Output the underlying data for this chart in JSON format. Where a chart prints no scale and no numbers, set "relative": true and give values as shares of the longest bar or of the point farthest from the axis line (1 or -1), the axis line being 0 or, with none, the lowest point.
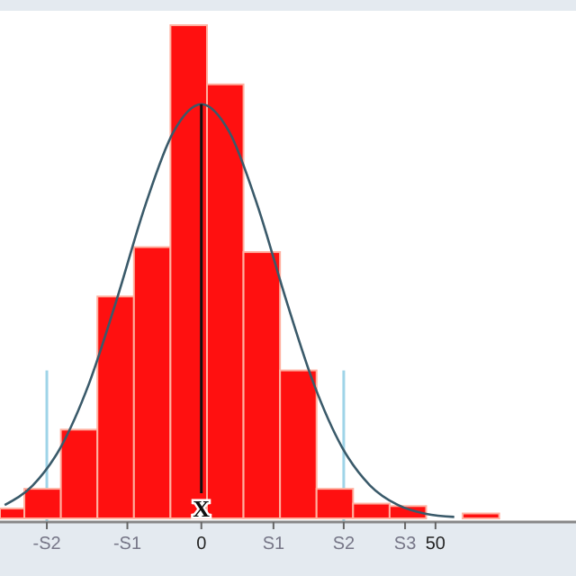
{
  "chart_data": {
    "type": "histogram",
    "relative": true,
    "xlim": [
      -43,
      80
    ],
    "xticks": [
      {
        "value": -33,
        "label": "-S2"
      },
      {
        "value": -15.8,
        "label": "-S1"
      },
      0,
      {
        "value": 15.4,
        "label": "S1"
      },
      {
        "value": 30.4,
        "label": "S2"
      },
      {
        "value": 43.5,
        "label": "S3"
      },
      50
    ],
    "series": [
      {
        "color": "#ff1010",
        "bins": [
          -43,
          -37.8,
          -30,
          -22.2,
          -14.4,
          -6.6,
          1.2,
          9,
          16.8,
          24.6,
          32.4,
          40.2,
          48,
          55.8,
          63.6
        ],
        "values": [
          0.02,
          0.06,
          0.18,
          0.45,
          0.55,
          1,
          0.88,
          0.54,
          0.3,
          0.06,
          0.03,
          0.025,
          0,
          0.01
        ]
      },
      {
        "type": "line",
        "color": "#3a5a6a",
        "x": [
          -42,
          -36,
          -30,
          -24,
          -18,
          -12,
          -6,
          0,
          6,
          12,
          18,
          24,
          30,
          36,
          42,
          48,
          54
        ],
        "values": [
          0.027,
          0.067,
          0.145,
          0.273,
          0.446,
          0.634,
          0.783,
          0.84,
          0.783,
          0.634,
          0.446,
          0.273,
          0.145,
          0.067,
          0.027,
          0.009,
          0.003
        ]
      }
    ],
    "ref_lines": [
      {
        "axis": "x",
        "value": 0,
        "label": "X",
        "color": "#111111"
      },
      {
        "axis": "x",
        "value": -33,
        "label": null,
        "color": "#9fd4e8"
      },
      {
        "axis": "x",
        "value": 30.4,
        "label": null,
        "color": "#9fd4e8"
      }
    ]
  }
}
